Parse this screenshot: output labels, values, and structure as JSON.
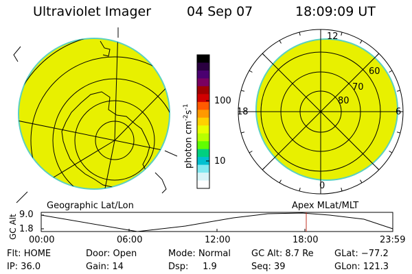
{
  "header": {
    "instrument": "Ultraviolet Imager",
    "date": "04 Sep 07",
    "time": "18:09:09 UT"
  },
  "colorbar": {
    "label": "photon cm",
    "label_exp1": "-2",
    "label_mid": "s",
    "label_exp2": "-1",
    "ticks": [
      "100",
      "10"
    ],
    "colors_top_to_bottom": [
      "#000000",
      "#2a0040",
      "#4a0070",
      "#7a0060",
      "#a00000",
      "#d00000",
      "#ff5a00",
      "#ff9900",
      "#ffd000",
      "#e8ff00",
      "#b8ff00",
      "#60ff00",
      "#00d080",
      "#00c0d0",
      "#80e8f0",
      "#d8f4f8",
      "#ffffff"
    ]
  },
  "left_map": {
    "caption": "Geographic Lat/Lon",
    "fill_color": "#e8f000",
    "edge_color": "#5ad0c0"
  },
  "right_map": {
    "caption": "Apex  MLat/MLT",
    "mlt_labels": {
      "top": "12",
      "left": "18",
      "right": "6",
      "bottom": "0"
    },
    "lat_labels": [
      "60",
      "70",
      "80"
    ],
    "fill_color": "#e8f000"
  },
  "altitude_plot": {
    "ylabel": "GC Alt",
    "y_ticks": [
      "9.0",
      "1.8"
    ],
    "x_ticks": [
      "00:00",
      "06:00",
      "12:00",
      "18:00",
      "23:59"
    ],
    "marker_color": "#c03020"
  },
  "info": {
    "flt": "Flt: HOME",
    "door": "Door: Open",
    "mode_key": "Mode:",
    "mode_val": "Normal",
    "gcalt": "GC Alt:  8.7 Re",
    "glat": "GLat:  −77.2",
    "ip": "IP: 36.0",
    "gain": "Gain: 14",
    "dsp_key": "Dsp:",
    "dsp_val": "1.9",
    "seq": "Seq: 39",
    "glon": "GLon: 121.3"
  }
}
